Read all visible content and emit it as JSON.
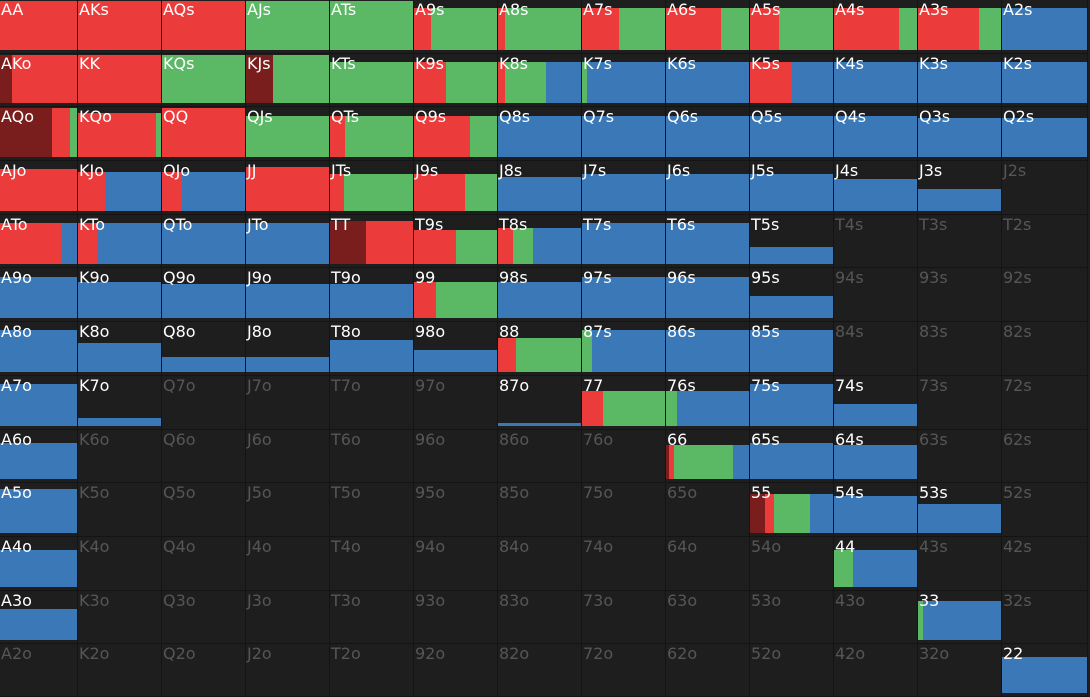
{
  "colors": {
    "raise": "#ec3b3b",
    "call": "#5bb865",
    "fold": "#3a78b8",
    "allin": "#7a1d1d",
    "background": "#1e1e1e",
    "label": "#ffffff",
    "label_dim": "#565656"
  },
  "hands": [
    [
      {
        "label": "AA",
        "freq": 1,
        "mix": {
          "raise": 1
        }
      },
      {
        "label": "AKs",
        "freq": 1,
        "mix": {
          "raise": 1
        }
      },
      {
        "label": "AQs",
        "freq": 1,
        "mix": {
          "raise": 1
        }
      },
      {
        "label": "AJs",
        "freq": 1,
        "mix": {
          "call": 1
        }
      },
      {
        "label": "ATs",
        "freq": 1,
        "mix": {
          "call": 1
        }
      },
      {
        "label": "A9s",
        "freq": 0.85,
        "mix": {
          "raise": 0.2,
          "call": 0.8
        }
      },
      {
        "label": "A8s",
        "freq": 0.85,
        "mix": {
          "raise": 0.08,
          "call": 0.92
        }
      },
      {
        "label": "A7s",
        "freq": 0.85,
        "mix": {
          "raise": 0.44,
          "call": 0.56
        }
      },
      {
        "label": "A6s",
        "freq": 0.85,
        "mix": {
          "raise": 0.66,
          "call": 0.34
        }
      },
      {
        "label": "A5s",
        "freq": 0.85,
        "mix": {
          "raise": 0.35,
          "call": 0.65
        }
      },
      {
        "label": "A4s",
        "freq": 0.85,
        "mix": {
          "raise": 0.78,
          "call": 0.22
        }
      },
      {
        "label": "A3s",
        "freq": 0.85,
        "mix": {
          "raise": 0.73,
          "call": 0.27
        }
      },
      {
        "label": "A2s",
        "freq": 0.85,
        "mix": {
          "fold": 1
        }
      }
    ],
    [
      {
        "label": "AKo",
        "freq": 1,
        "mix": {
          "allin": 0.16,
          "raise": 0.84
        }
      },
      {
        "label": "KK",
        "freq": 1,
        "mix": {
          "raise": 1
        }
      },
      {
        "label": "KQs",
        "freq": 1,
        "mix": {
          "call": 1
        }
      },
      {
        "label": "KJs",
        "freq": 1,
        "mix": {
          "allin": 0.33,
          "call": 0.67
        }
      },
      {
        "label": "KTs",
        "freq": 0.85,
        "mix": {
          "call": 1
        }
      },
      {
        "label": "K9s",
        "freq": 0.85,
        "mix": {
          "raise": 0.38,
          "call": 0.62
        }
      },
      {
        "label": "K8s",
        "freq": 0.85,
        "mix": {
          "raise": 0.08,
          "call": 0.5,
          "fold": 0.42
        }
      },
      {
        "label": "K7s",
        "freq": 0.85,
        "mix": {
          "call": 0.06,
          "fold": 0.94
        }
      },
      {
        "label": "K6s",
        "freq": 0.85,
        "mix": {
          "fold": 1
        }
      },
      {
        "label": "K5s",
        "freq": 0.85,
        "mix": {
          "raise": 0.5,
          "fold": 0.5
        }
      },
      {
        "label": "K4s",
        "freq": 0.85,
        "mix": {
          "fold": 1
        }
      },
      {
        "label": "K3s",
        "freq": 0.85,
        "mix": {
          "fold": 1
        }
      },
      {
        "label": "K2s",
        "freq": 0.85,
        "mix": {
          "fold": 1
        }
      }
    ],
    [
      {
        "label": "AQo",
        "freq": 1,
        "mix": {
          "allin": 0.67,
          "raise": 0.24,
          "call": 0.09
        }
      },
      {
        "label": "KQo",
        "freq": 0.9,
        "mix": {
          "raise": 0.94,
          "call": 0.06
        }
      },
      {
        "label": "QQ",
        "freq": 1,
        "mix": {
          "raise": 1
        }
      },
      {
        "label": "QJs",
        "freq": 0.85,
        "mix": {
          "call": 1
        }
      },
      {
        "label": "QTs",
        "freq": 0.85,
        "mix": {
          "raise": 0.18,
          "call": 0.82
        }
      },
      {
        "label": "Q9s",
        "freq": 0.85,
        "mix": {
          "raise": 0.67,
          "call": 0.33
        }
      },
      {
        "label": "Q8s",
        "freq": 0.85,
        "mix": {
          "fold": 1
        }
      },
      {
        "label": "Q7s",
        "freq": 0.85,
        "mix": {
          "fold": 1
        }
      },
      {
        "label": "Q6s",
        "freq": 0.85,
        "mix": {
          "fold": 1
        }
      },
      {
        "label": "Q5s",
        "freq": 0.85,
        "mix": {
          "fold": 1
        }
      },
      {
        "label": "Q4s",
        "freq": 0.85,
        "mix": {
          "fold": 1
        }
      },
      {
        "label": "Q3s",
        "freq": 0.8,
        "mix": {
          "fold": 1
        }
      },
      {
        "label": "Q2s",
        "freq": 0.8,
        "mix": {
          "fold": 1
        }
      }
    ],
    [
      {
        "label": "AJo",
        "freq": 0.85,
        "mix": {
          "raise": 1
        }
      },
      {
        "label": "KJo",
        "freq": 0.8,
        "mix": {
          "raise": 0.32,
          "fold": 0.68
        }
      },
      {
        "label": "QJo",
        "freq": 0.8,
        "mix": {
          "raise": 0.24,
          "fold": 0.76
        }
      },
      {
        "label": "JJ",
        "freq": 0.9,
        "mix": {
          "raise": 1
        }
      },
      {
        "label": "JTs",
        "freq": 0.75,
        "mix": {
          "raise": 0.17,
          "call": 0.83
        }
      },
      {
        "label": "J9s",
        "freq": 0.75,
        "mix": {
          "raise": 0.61,
          "call": 0.39
        }
      },
      {
        "label": "J8s",
        "freq": 0.7,
        "mix": {
          "fold": 1
        }
      },
      {
        "label": "J7s",
        "freq": 0.75,
        "mix": {
          "fold": 1
        }
      },
      {
        "label": "J6s",
        "freq": 0.75,
        "mix": {
          "fold": 1
        }
      },
      {
        "label": "J5s",
        "freq": 0.75,
        "mix": {
          "fold": 1
        }
      },
      {
        "label": "J4s",
        "freq": 0.65,
        "mix": {
          "fold": 1
        }
      },
      {
        "label": "J3s",
        "freq": 0.45,
        "mix": {
          "fold": 1
        }
      },
      {
        "label": "J2s",
        "freq": 0,
        "mix": {}
      }
    ],
    [
      {
        "label": "ATo",
        "freq": 0.85,
        "mix": {
          "raise": 0.8,
          "fold": 0.2
        }
      },
      {
        "label": "KTo",
        "freq": 0.85,
        "mix": {
          "raise": 0.23,
          "fold": 0.77
        }
      },
      {
        "label": "QTo",
        "freq": 0.85,
        "mix": {
          "fold": 1
        }
      },
      {
        "label": "JTo",
        "freq": 0.85,
        "mix": {
          "fold": 1
        }
      },
      {
        "label": "TT",
        "freq": 0.9,
        "mix": {
          "allin": 0.43,
          "raise": 0.57
        }
      },
      {
        "label": "T9s",
        "freq": 0.7,
        "mix": {
          "raise": 0.5,
          "call": 0.5
        }
      },
      {
        "label": "T8s",
        "freq": 0.75,
        "mix": {
          "raise": 0.18,
          "call": 0.24,
          "fold": 0.58
        }
      },
      {
        "label": "T7s",
        "freq": 0.85,
        "mix": {
          "fold": 1
        }
      },
      {
        "label": "T6s",
        "freq": 0.85,
        "mix": {
          "fold": 1
        }
      },
      {
        "label": "T5s",
        "freq": 0.35,
        "mix": {
          "fold": 1
        }
      },
      {
        "label": "T4s",
        "freq": 0,
        "mix": {}
      },
      {
        "label": "T3s",
        "freq": 0,
        "mix": {}
      },
      {
        "label": "T2s",
        "freq": 0,
        "mix": {}
      }
    ],
    [
      {
        "label": "A9o",
        "freq": 0.85,
        "mix": {
          "fold": 1
        }
      },
      {
        "label": "K9o",
        "freq": 0.75,
        "mix": {
          "fold": 1
        }
      },
      {
        "label": "Q9o",
        "freq": 0.7,
        "mix": {
          "fold": 1
        }
      },
      {
        "label": "J9o",
        "freq": 0.7,
        "mix": {
          "fold": 1
        }
      },
      {
        "label": "T9o",
        "freq": 0.7,
        "mix": {
          "fold": 1
        }
      },
      {
        "label": "99",
        "freq": 0.75,
        "mix": {
          "raise": 0.27,
          "call": 0.73
        }
      },
      {
        "label": "98s",
        "freq": 0.75,
        "mix": {
          "fold": 1
        }
      },
      {
        "label": "97s",
        "freq": 0.85,
        "mix": {
          "fold": 1
        }
      },
      {
        "label": "96s",
        "freq": 0.85,
        "mix": {
          "fold": 1
        }
      },
      {
        "label": "95s",
        "freq": 0.45,
        "mix": {
          "fold": 1
        }
      },
      {
        "label": "94s",
        "freq": 0,
        "mix": {}
      },
      {
        "label": "93s",
        "freq": 0,
        "mix": {}
      },
      {
        "label": "92s",
        "freq": 0,
        "mix": {}
      }
    ],
    [
      {
        "label": "A8o",
        "freq": 0.85,
        "mix": {
          "fold": 1
        }
      },
      {
        "label": "K8o",
        "freq": 0.6,
        "mix": {
          "fold": 1
        }
      },
      {
        "label": "Q8o",
        "freq": 0.3,
        "mix": {
          "fold": 1
        }
      },
      {
        "label": "J8o",
        "freq": 0.3,
        "mix": {
          "fold": 1
        }
      },
      {
        "label": "T8o",
        "freq": 0.65,
        "mix": {
          "fold": 1
        }
      },
      {
        "label": "98o",
        "freq": 0.45,
        "mix": {
          "fold": 1
        }
      },
      {
        "label": "88",
        "freq": 0.7,
        "mix": {
          "raise": 0.22,
          "call": 0.78
        }
      },
      {
        "label": "87s",
        "freq": 0.85,
        "mix": {
          "call": 0.12,
          "fold": 0.88
        }
      },
      {
        "label": "86s",
        "freq": 0.85,
        "mix": {
          "fold": 1
        }
      },
      {
        "label": "85s",
        "freq": 0.85,
        "mix": {
          "fold": 1
        }
      },
      {
        "label": "84s",
        "freq": 0,
        "mix": {}
      },
      {
        "label": "83s",
        "freq": 0,
        "mix": {}
      },
      {
        "label": "82s",
        "freq": 0,
        "mix": {}
      }
    ],
    [
      {
        "label": "A7o",
        "freq": 0.85,
        "mix": {
          "fold": 1
        }
      },
      {
        "label": "K7o",
        "freq": 0.15,
        "mix": {
          "fold": 1
        }
      },
      {
        "label": "Q7o",
        "freq": 0,
        "mix": {}
      },
      {
        "label": "J7o",
        "freq": 0,
        "mix": {}
      },
      {
        "label": "T7o",
        "freq": 0,
        "mix": {}
      },
      {
        "label": "97o",
        "freq": 0,
        "mix": {}
      },
      {
        "label": "87o",
        "freq": 0.06,
        "mix": {
          "fold": 1
        }
      },
      {
        "label": "77",
        "freq": 0.7,
        "mix": {
          "raise": 0.25,
          "call": 0.75
        }
      },
      {
        "label": "76s",
        "freq": 0.7,
        "mix": {
          "call": 0.13,
          "fold": 0.87
        }
      },
      {
        "label": "75s",
        "freq": 0.85,
        "mix": {
          "fold": 1
        }
      },
      {
        "label": "74s",
        "freq": 0.45,
        "mix": {
          "fold": 1
        }
      },
      {
        "label": "73s",
        "freq": 0,
        "mix": {}
      },
      {
        "label": "72s",
        "freq": 0,
        "mix": {}
      }
    ],
    [
      {
        "label": "A6o",
        "freq": 0.75,
        "mix": {
          "fold": 1
        }
      },
      {
        "label": "K6o",
        "freq": 0,
        "mix": {}
      },
      {
        "label": "Q6o",
        "freq": 0,
        "mix": {}
      },
      {
        "label": "J6o",
        "freq": 0,
        "mix": {}
      },
      {
        "label": "T6o",
        "freq": 0,
        "mix": {}
      },
      {
        "label": "96o",
        "freq": 0,
        "mix": {}
      },
      {
        "label": "86o",
        "freq": 0,
        "mix": {}
      },
      {
        "label": "76o",
        "freq": 0,
        "mix": {}
      },
      {
        "label": "66",
        "freq": 0.7,
        "mix": {
          "allin": 0.04,
          "raise": 0.06,
          "call": 0.71,
          "fold": 0.19
        }
      },
      {
        "label": "65s",
        "freq": 0.75,
        "mix": {
          "fold": 1
        }
      },
      {
        "label": "64s",
        "freq": 0.7,
        "mix": {
          "fold": 1
        }
      },
      {
        "label": "63s",
        "freq": 0,
        "mix": {}
      },
      {
        "label": "62s",
        "freq": 0,
        "mix": {}
      }
    ],
    [
      {
        "label": "A5o",
        "freq": 0.9,
        "mix": {
          "fold": 1
        }
      },
      {
        "label": "K5o",
        "freq": 0,
        "mix": {}
      },
      {
        "label": "Q5o",
        "freq": 0,
        "mix": {}
      },
      {
        "label": "J5o",
        "freq": 0,
        "mix": {}
      },
      {
        "label": "T5o",
        "freq": 0,
        "mix": {}
      },
      {
        "label": "95o",
        "freq": 0,
        "mix": {}
      },
      {
        "label": "85o",
        "freq": 0,
        "mix": {}
      },
      {
        "label": "75o",
        "freq": 0,
        "mix": {}
      },
      {
        "label": "65o",
        "freq": 0,
        "mix": {}
      },
      {
        "label": "55",
        "freq": 0.8,
        "mix": {
          "allin": 0.18,
          "raise": 0.11,
          "call": 0.43,
          "fold": 0.28
        }
      },
      {
        "label": "54s",
        "freq": 0.75,
        "mix": {
          "fold": 1
        }
      },
      {
        "label": "53s",
        "freq": 0.6,
        "mix": {
          "fold": 1
        }
      },
      {
        "label": "52s",
        "freq": 0,
        "mix": {}
      }
    ],
    [
      {
        "label": "A4o",
        "freq": 0.75,
        "mix": {
          "fold": 1
        }
      },
      {
        "label": "K4o",
        "freq": 0,
        "mix": {}
      },
      {
        "label": "Q4o",
        "freq": 0,
        "mix": {}
      },
      {
        "label": "J4o",
        "freq": 0,
        "mix": {}
      },
      {
        "label": "T4o",
        "freq": 0,
        "mix": {}
      },
      {
        "label": "94o",
        "freq": 0,
        "mix": {}
      },
      {
        "label": "84o",
        "freq": 0,
        "mix": {}
      },
      {
        "label": "74o",
        "freq": 0,
        "mix": {}
      },
      {
        "label": "64o",
        "freq": 0,
        "mix": {}
      },
      {
        "label": "54o",
        "freq": 0,
        "mix": {}
      },
      {
        "label": "44",
        "freq": 0.75,
        "mix": {
          "call": 0.23,
          "fold": 0.77
        }
      },
      {
        "label": "43s",
        "freq": 0,
        "mix": {}
      },
      {
        "label": "42s",
        "freq": 0,
        "mix": {}
      }
    ],
    [
      {
        "label": "A3o",
        "freq": 0.65,
        "mix": {
          "fold": 1
        }
      },
      {
        "label": "K3o",
        "freq": 0,
        "mix": {}
      },
      {
        "label": "Q3o",
        "freq": 0,
        "mix": {}
      },
      {
        "label": "J3o",
        "freq": 0,
        "mix": {}
      },
      {
        "label": "T3o",
        "freq": 0,
        "mix": {}
      },
      {
        "label": "93o",
        "freq": 0,
        "mix": {}
      },
      {
        "label": "83o",
        "freq": 0,
        "mix": {}
      },
      {
        "label": "73o",
        "freq": 0,
        "mix": {}
      },
      {
        "label": "63o",
        "freq": 0,
        "mix": {}
      },
      {
        "label": "53o",
        "freq": 0,
        "mix": {}
      },
      {
        "label": "43o",
        "freq": 0,
        "mix": {}
      },
      {
        "label": "33",
        "freq": 0.8,
        "mix": {
          "call": 0.06,
          "fold": 0.94
        }
      },
      {
        "label": "32s",
        "freq": 0,
        "mix": {}
      }
    ],
    [
      {
        "label": "A2o",
        "freq": 0,
        "mix": {}
      },
      {
        "label": "K2o",
        "freq": 0,
        "mix": {}
      },
      {
        "label": "Q2o",
        "freq": 0,
        "mix": {}
      },
      {
        "label": "J2o",
        "freq": 0,
        "mix": {}
      },
      {
        "label": "T2o",
        "freq": 0,
        "mix": {}
      },
      {
        "label": "92o",
        "freq": 0,
        "mix": {}
      },
      {
        "label": "82o",
        "freq": 0,
        "mix": {}
      },
      {
        "label": "72o",
        "freq": 0,
        "mix": {}
      },
      {
        "label": "62o",
        "freq": 0,
        "mix": {}
      },
      {
        "label": "52o",
        "freq": 0,
        "mix": {}
      },
      {
        "label": "42o",
        "freq": 0,
        "mix": {}
      },
      {
        "label": "32o",
        "freq": 0,
        "mix": {}
      },
      {
        "label": "22",
        "freq": 0.75,
        "mix": {
          "fold": 1
        }
      }
    ]
  ]
}
